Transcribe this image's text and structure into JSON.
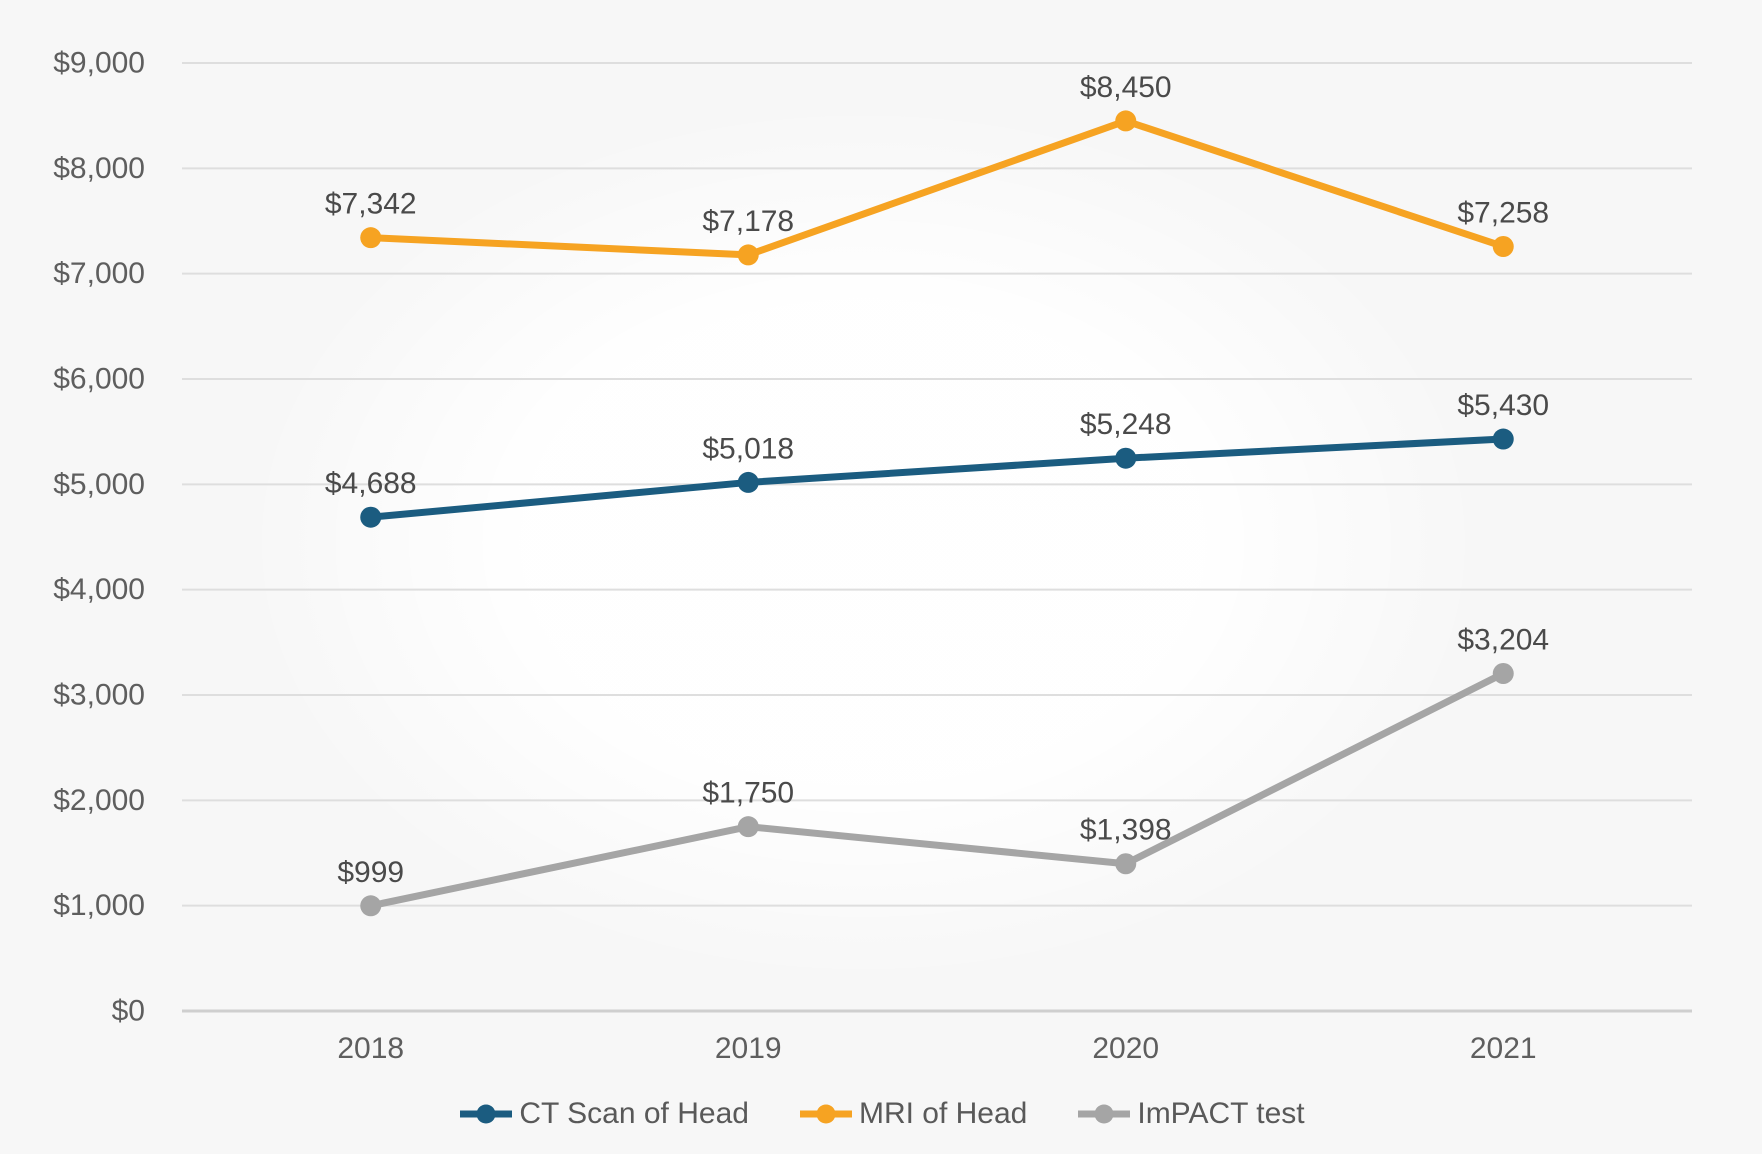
{
  "chart_data": {
    "type": "line",
    "title": "",
    "xlabel": "",
    "ylabel": "",
    "categories": [
      "2018",
      "2019",
      "2020",
      "2021"
    ],
    "series": [
      {
        "name": "CT Scan of Head",
        "color": "#1B5C80",
        "values": [
          4688,
          5018,
          5248,
          5430
        ],
        "labels": [
          "$4,688",
          "$5,018",
          "$5,248",
          "$5,430"
        ]
      },
      {
        "name": "MRI of Head",
        "color": "#F6A322",
        "values": [
          7342,
          7178,
          8450,
          7258
        ],
        "labels": [
          "$7,342",
          "$7,178",
          "$8,450",
          "$7,258"
        ]
      },
      {
        "name": "ImPACT test",
        "color": "#A5A5A5",
        "values": [
          999,
          1750,
          1398,
          3204
        ],
        "labels": [
          "$999",
          "$1,750",
          "$1,398",
          "$3,204"
        ]
      }
    ],
    "ylim": [
      0,
      9000
    ],
    "ytick_step": 1000,
    "ytick_labels": [
      "$0",
      "$1,000",
      "$2,000",
      "$3,000",
      "$4,000",
      "$5,000",
      "$6,000",
      "$7,000",
      "$8,000",
      "$9,000"
    ],
    "grid": true,
    "legend_position": "bottom"
  },
  "style": {
    "background": "#f7f7f7",
    "grid_color": "#dedede",
    "baseline_color": "#cfcfcf",
    "axis_text_color": "#5e5e5e",
    "data_label_color": "#4a4a4a",
    "legend_text_color": "#595959"
  }
}
